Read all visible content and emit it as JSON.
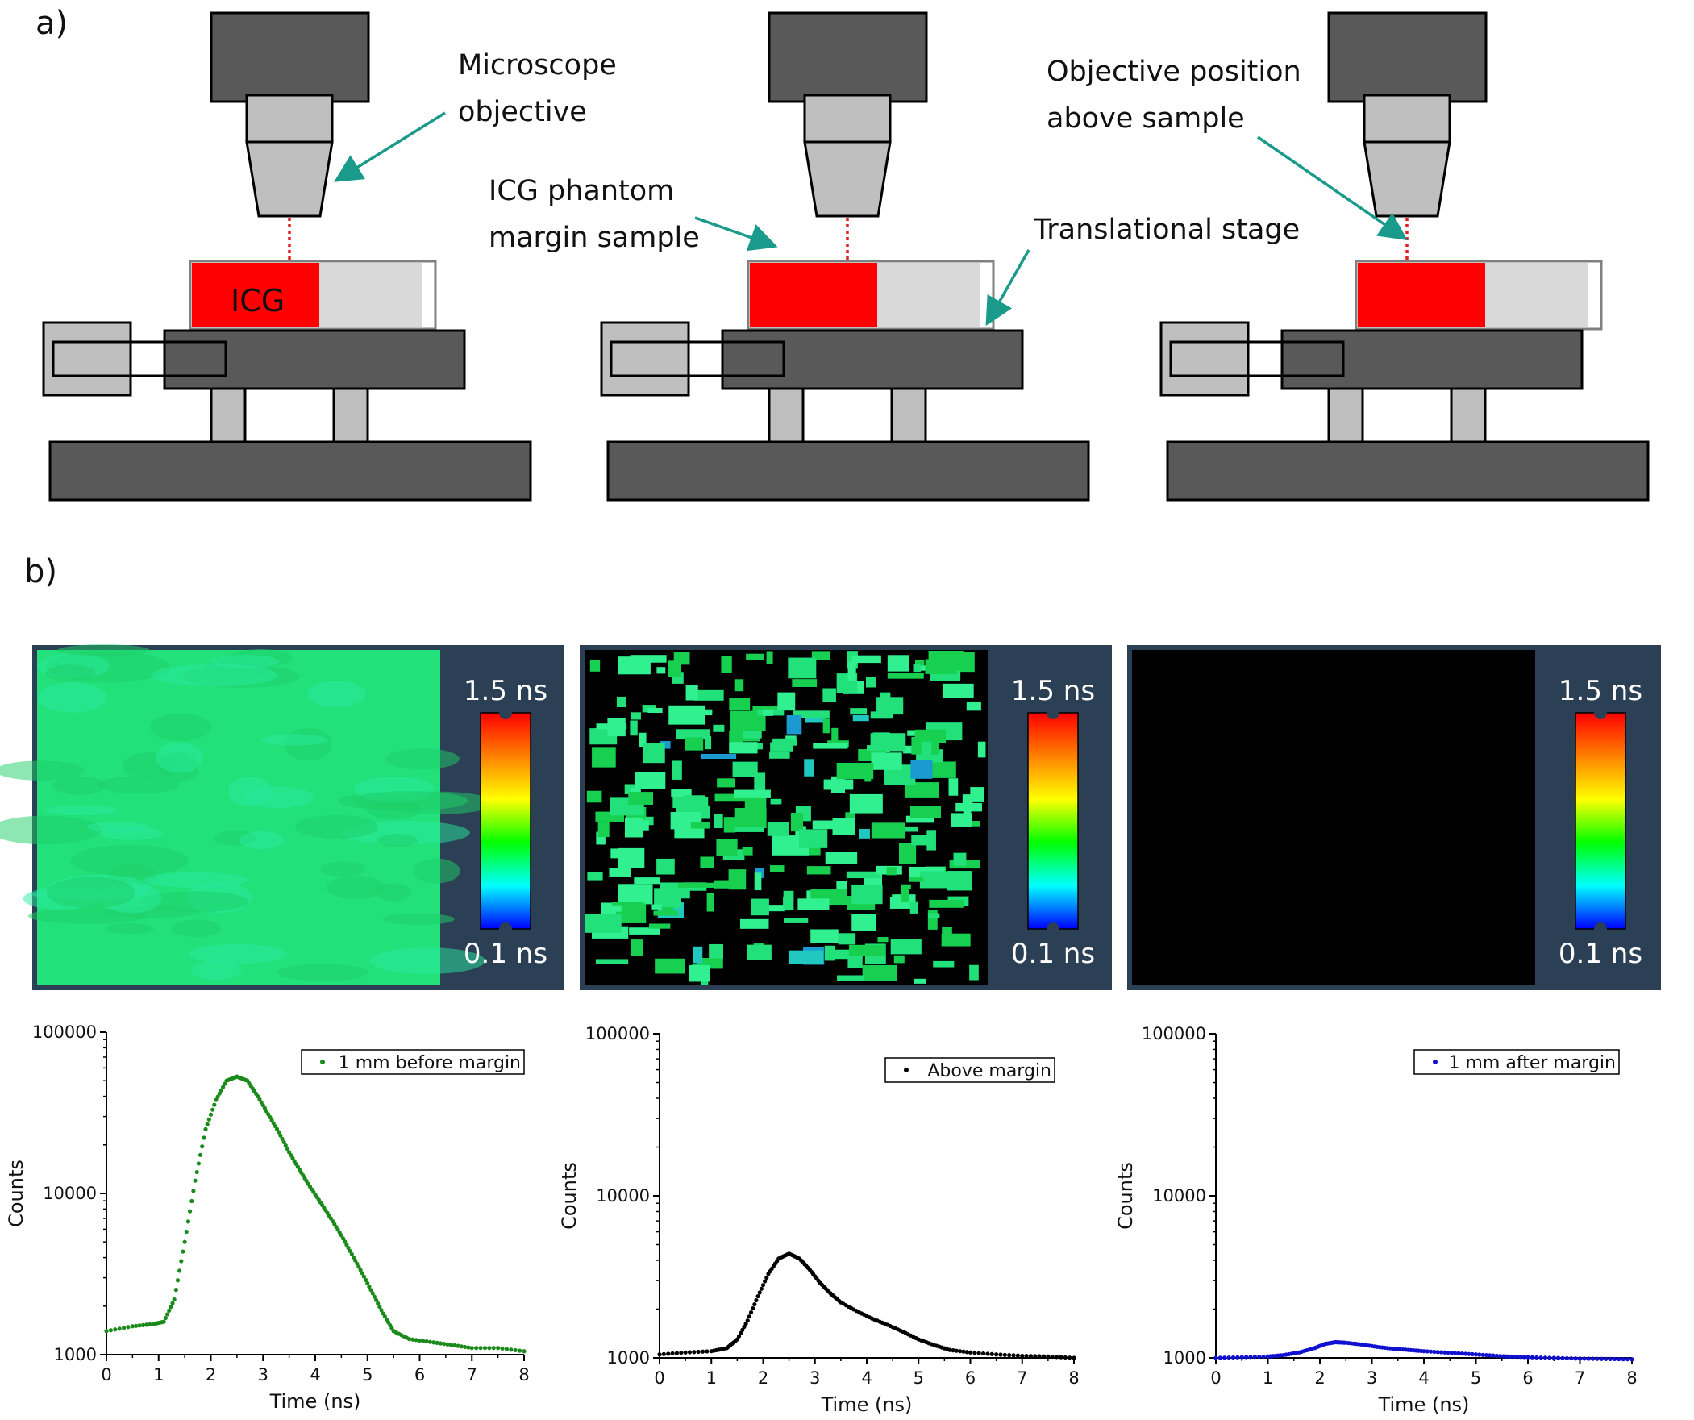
{
  "panel_a": {
    "label": "a)",
    "annotations": {
      "microscope_objective": [
        "Microscope",
        "objective"
      ],
      "icg_phantom": [
        "ICG phantom",
        "margin sample"
      ],
      "translational_stage": "Translational stage",
      "objective_position": [
        "Objective position",
        "above sample"
      ]
    },
    "sample_label": "ICG",
    "colors": {
      "icg": "#ff0000",
      "tissue": "#d9d9d9",
      "body": "#595959",
      "part": "#bfbfbf",
      "arrow": "#1a9a8a",
      "beam": "#e02020"
    }
  },
  "panel_b": {
    "label": "b)",
    "colorbar": {
      "max_label": "1.5 ns",
      "min_label": "0.1 ns"
    },
    "images": [
      {
        "id": "before",
        "fill": "green-uniform"
      },
      {
        "id": "above",
        "fill": "green-patchy"
      },
      {
        "id": "after",
        "fill": "black"
      }
    ]
  },
  "chart_data": [
    {
      "type": "scatter",
      "title": "",
      "xlabel": "Time (ns)",
      "ylabel": "Counts",
      "xlim": [
        0,
        8
      ],
      "ylim": [
        1000,
        100000
      ],
      "yscale": "log",
      "x_ticks": [
        "0",
        "1",
        "2",
        "3",
        "4",
        "5",
        "6",
        "7",
        "8"
      ],
      "y_ticks": [
        "1000",
        "10000",
        "100000"
      ],
      "legend_position": "top-right",
      "series": [
        {
          "name": "1 mm before margin",
          "color": "#1a8a1a",
          "x": [
            0.0,
            0.5,
            0.9,
            1.1,
            1.3,
            1.5,
            1.7,
            1.9,
            2.1,
            2.3,
            2.5,
            2.7,
            2.9,
            3.1,
            3.3,
            3.5,
            3.7,
            3.9,
            4.1,
            4.3,
            4.5,
            4.7,
            4.9,
            5.1,
            5.3,
            5.5,
            5.8,
            6.2,
            6.6,
            7.0,
            7.5,
            8.0
          ],
          "y": [
            1400,
            1500,
            1550,
            1600,
            2200,
            5000,
            12000,
            25000,
            38000,
            50000,
            53000,
            50000,
            40000,
            31000,
            24000,
            18000,
            14000,
            11000,
            8800,
            7000,
            5500,
            4200,
            3200,
            2400,
            1800,
            1400,
            1250,
            1200,
            1150,
            1100,
            1100,
            1050
          ]
        }
      ]
    },
    {
      "type": "scatter",
      "title": "",
      "xlabel": "Time (ns)",
      "ylabel": "Counts",
      "xlim": [
        0,
        8
      ],
      "ylim": [
        1000,
        100000
      ],
      "yscale": "log",
      "x_ticks": [
        "0",
        "1",
        "2",
        "3",
        "4",
        "5",
        "6",
        "7",
        "8"
      ],
      "y_ticks": [
        "1000",
        "10000",
        "100000"
      ],
      "legend_position": "top-right",
      "series": [
        {
          "name": "Above margin",
          "color": "#000000",
          "x": [
            0.0,
            0.5,
            1.0,
            1.3,
            1.5,
            1.7,
            1.9,
            2.1,
            2.3,
            2.5,
            2.7,
            2.9,
            3.1,
            3.3,
            3.5,
            3.8,
            4.1,
            4.4,
            4.7,
            5.0,
            5.3,
            5.6,
            6.0,
            6.5,
            7.0,
            7.5,
            8.0
          ],
          "y": [
            1050,
            1080,
            1100,
            1150,
            1300,
            1700,
            2400,
            3300,
            4100,
            4400,
            4100,
            3500,
            2900,
            2500,
            2200,
            1950,
            1750,
            1600,
            1450,
            1300,
            1200,
            1120,
            1080,
            1050,
            1030,
            1020,
            1000
          ]
        }
      ]
    },
    {
      "type": "scatter",
      "title": "",
      "xlabel": "Time (ns)",
      "ylabel": "Counts",
      "xlim": [
        0,
        8
      ],
      "ylim": [
        1000,
        100000
      ],
      "yscale": "log",
      "x_ticks": [
        "0",
        "1",
        "2",
        "3",
        "4",
        "5",
        "6",
        "7",
        "8"
      ],
      "y_ticks": [
        "1000",
        "10000",
        "100000"
      ],
      "legend_position": "top-right",
      "series": [
        {
          "name": "1 mm after margin",
          "color": "#1010d0",
          "x": [
            0.0,
            0.5,
            1.0,
            1.3,
            1.6,
            1.9,
            2.1,
            2.3,
            2.5,
            2.8,
            3.1,
            3.4,
            3.7,
            4.0,
            4.4,
            4.8,
            5.2,
            5.6,
            6.0,
            6.5,
            7.0,
            7.5,
            8.0
          ],
          "y": [
            1000,
            1010,
            1020,
            1040,
            1080,
            1150,
            1220,
            1250,
            1240,
            1210,
            1170,
            1140,
            1120,
            1100,
            1080,
            1060,
            1040,
            1020,
            1010,
            1000,
            990,
            985,
            980
          ]
        }
      ]
    }
  ]
}
